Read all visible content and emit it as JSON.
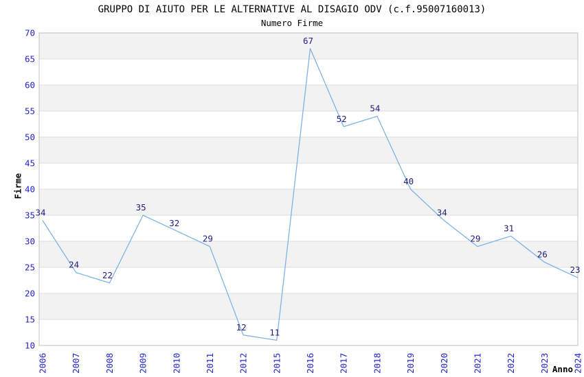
{
  "chart_data": {
    "type": "line",
    "title": "GRUPPO DI AIUTO PER LE ALTERNATIVE AL DISAGIO ODV (c.f.95007160013)",
    "subtitle": "Numero Firme",
    "xlabel": "Anno",
    "ylabel": "Firme",
    "categories": [
      "2006",
      "2007",
      "2008",
      "2009",
      "2010",
      "2011",
      "2012",
      "2015",
      "2016",
      "2017",
      "2018",
      "2019",
      "2020",
      "2021",
      "2022",
      "2023",
      "2024"
    ],
    "values": [
      34,
      24,
      22,
      35,
      32,
      29,
      12,
      11,
      67,
      52,
      54,
      40,
      34,
      29,
      31,
      26,
      23
    ],
    "ylim": [
      10,
      70
    ],
    "ytick_step": 5,
    "yticks": [
      10,
      15,
      20,
      25,
      30,
      35,
      40,
      45,
      50,
      55,
      60,
      65,
      70
    ],
    "grid": "alternating-horizontal-bands",
    "legend": "none",
    "data_labels": "shown-above-points",
    "colors": {
      "line": "#7fb2e5",
      "data_label": "#202080",
      "tick_label": "#2424cc",
      "band": "#f2f2f2",
      "grid_line": "#dcdcdc",
      "frame": "#c0c0c0",
      "text": "#000000",
      "background": "#ffffff"
    }
  }
}
